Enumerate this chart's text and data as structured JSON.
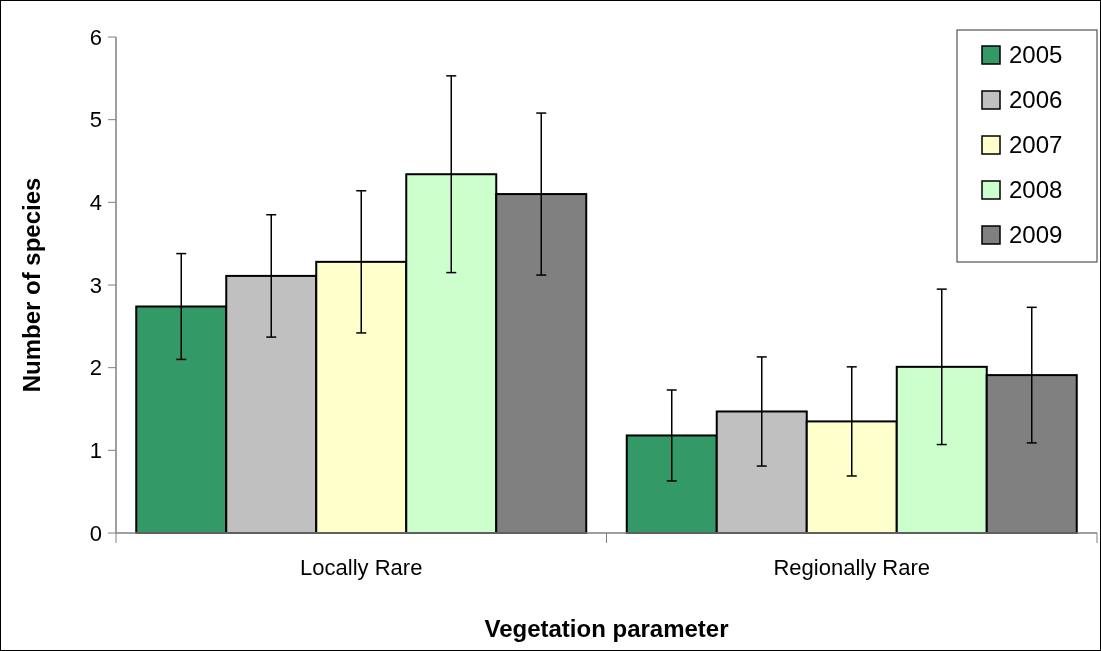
{
  "chart_data": {
    "type": "bar",
    "xlabel": "Vegetation parameter",
    "ylabel": "Number of species",
    "categories": [
      "Locally Rare",
      "Regionally Rare"
    ],
    "series": [
      {
        "name": "2005",
        "color": "#339966",
        "values": [
          2.74,
          1.18
        ],
        "errors": [
          0.64,
          0.55
        ]
      },
      {
        "name": "2006",
        "color": "#c0c0c0",
        "values": [
          3.11,
          1.47
        ],
        "errors": [
          0.74,
          0.66
        ]
      },
      {
        "name": "2007",
        "color": "#ffffcc",
        "values": [
          3.28,
          1.35
        ],
        "errors": [
          0.86,
          0.66
        ]
      },
      {
        "name": "2008",
        "color": "#ccffcc",
        "values": [
          4.34,
          2.01
        ],
        "errors": [
          1.19,
          0.94
        ]
      },
      {
        "name": "2009",
        "color": "#808080",
        "values": [
          4.1,
          1.91
        ],
        "errors": [
          0.98,
          0.82
        ]
      }
    ],
    "ylim": [
      0,
      6
    ],
    "yticks": [
      0,
      1,
      2,
      3,
      4,
      5,
      6
    ],
    "grid": false,
    "legend": "top right"
  }
}
